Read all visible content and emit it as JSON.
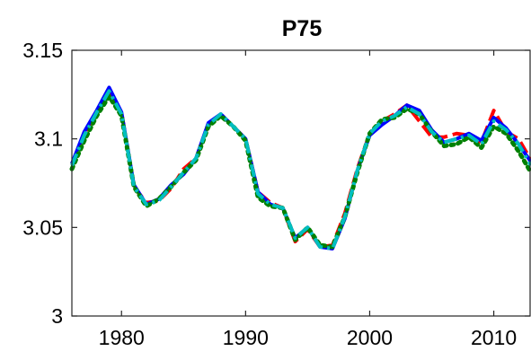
{
  "chart_data": {
    "type": "line",
    "title": "P75",
    "xlabel": "",
    "ylabel": "",
    "xlim": [
      1976,
      2013
    ],
    "ylim": [
      3,
      3.15
    ],
    "x_ticks": [
      "1980",
      "1990",
      "2000",
      "2010"
    ],
    "y_ticks": [
      "3",
      "3.05",
      "3.1",
      "3.15"
    ],
    "grid": false,
    "legend": "none",
    "x": [
      1976,
      1977,
      1978,
      1979,
      1980,
      1981,
      1982,
      1983,
      1984,
      1985,
      1986,
      1987,
      1988,
      1989,
      1990,
      1991,
      1992,
      1993,
      1994,
      1995,
      1996,
      1997,
      1998,
      1999,
      2000,
      2001,
      2002,
      2003,
      2004,
      2005,
      2006,
      2007,
      2008,
      2009,
      2010,
      2011,
      2012,
      2013
    ],
    "series": [
      {
        "color": "#ff0000",
        "style": "dashed",
        "values": [
          3.086,
          3.103,
          3.115,
          3.126,
          3.115,
          3.073,
          3.064,
          3.065,
          3.072,
          3.083,
          3.089,
          3.108,
          3.114,
          3.107,
          3.1,
          3.07,
          3.064,
          3.061,
          3.042,
          3.049,
          3.039,
          3.04,
          3.058,
          3.083,
          3.103,
          3.11,
          3.114,
          3.119,
          3.11,
          3.101,
          3.101,
          3.103,
          3.102,
          3.098,
          3.116,
          3.104,
          3.1,
          3.088
        ]
      },
      {
        "color": "#0000ff",
        "style": "solid",
        "values": [
          3.086,
          3.104,
          3.116,
          3.129,
          3.115,
          3.074,
          3.063,
          3.066,
          3.074,
          3.08,
          3.089,
          3.109,
          3.114,
          3.107,
          3.1,
          3.07,
          3.063,
          3.061,
          3.044,
          3.05,
          3.039,
          3.038,
          3.055,
          3.082,
          3.102,
          3.108,
          3.113,
          3.119,
          3.116,
          3.105,
          3.098,
          3.1,
          3.103,
          3.099,
          3.112,
          3.106,
          3.097,
          3.087
        ]
      },
      {
        "color": "#008000",
        "style": "dotted",
        "values": [
          3.083,
          3.099,
          3.113,
          3.124,
          3.113,
          3.073,
          3.062,
          3.066,
          3.073,
          3.081,
          3.088,
          3.107,
          3.113,
          3.107,
          3.099,
          3.067,
          3.062,
          3.061,
          3.043,
          3.05,
          3.04,
          3.039,
          3.056,
          3.081,
          3.103,
          3.111,
          3.112,
          3.117,
          3.114,
          3.104,
          3.096,
          3.097,
          3.101,
          3.095,
          3.107,
          3.103,
          3.093,
          3.081
        ]
      },
      {
        "color": "#00bfbf",
        "style": "dashdot",
        "values": [
          3.085,
          3.102,
          3.115,
          3.127,
          3.114,
          3.073,
          3.063,
          3.065,
          3.073,
          3.081,
          3.089,
          3.108,
          3.114,
          3.107,
          3.1,
          3.069,
          3.063,
          3.061,
          3.044,
          3.05,
          3.039,
          3.038,
          3.056,
          3.082,
          3.103,
          3.11,
          3.113,
          3.118,
          3.114,
          3.104,
          3.098,
          3.1,
          3.102,
          3.097,
          3.11,
          3.105,
          3.097,
          3.085
        ]
      }
    ]
  }
}
